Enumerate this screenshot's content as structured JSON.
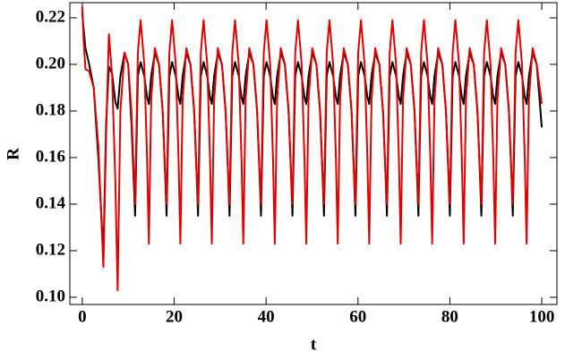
{
  "chart_data": {
    "type": "line",
    "xlabel": "t",
    "ylabel": "R",
    "xlim": [
      -2.7,
      103.3
    ],
    "ylim": [
      0.0969,
      0.2265
    ],
    "xticks": [
      0,
      20,
      40,
      60,
      80,
      100
    ],
    "yticks": [
      {
        "value": 0.1,
        "label": "0.10"
      },
      {
        "value": 0.12,
        "label": "0.12"
      },
      {
        "value": 0.14,
        "label": "0.14"
      },
      {
        "value": 0.16,
        "label": "0.16"
      },
      {
        "value": 0.18,
        "label": "0.18"
      },
      {
        "value": 0.2,
        "label": "0.20"
      },
      {
        "value": 0.22,
        "label": "0.22"
      }
    ],
    "x": [
      0,
      0.3,
      0.7,
      1.5,
      2.5,
      3.5,
      4.6,
      5.2,
      5.8,
      6.5,
      7.2,
      7.7,
      8.3,
      9.2,
      10.0,
      10.7,
      11.2,
      11.5,
      12.1,
      12.7,
      13.5,
      14.1,
      14.5,
      15,
      15.8,
      16.7,
      17.5,
      18,
      18.35,
      18.95,
      19.55,
      20.35,
      20.95,
      21.35,
      21.85,
      22.65,
      23.55,
      24.35,
      24.85,
      25.2,
      25.8,
      26.4,
      27.2,
      27.8,
      28.2,
      28.7,
      29.5,
      30.4,
      31.2,
      31.7,
      32.05,
      32.65,
      33.25,
      34.05,
      34.65,
      35.05,
      35.55,
      36.35,
      37.25,
      38.05,
      38.55,
      38.9,
      39.5,
      40.1,
      40.9,
      41.5,
      41.9,
      42.4,
      43.2,
      44.1,
      44.9,
      45.4,
      45.75,
      46.35,
      46.95,
      47.75,
      48.35,
      48.75,
      49.25,
      50.05,
      50.95,
      51.75,
      52.25,
      52.6,
      53.2,
      53.8,
      54.6,
      55.2,
      55.6,
      56.1,
      56.9,
      57.8,
      58.6,
      59.1,
      59.45,
      60.05,
      60.65,
      61.45,
      62.05,
      62.45,
      62.95,
      63.75,
      64.65,
      65.45,
      65.95,
      66.3,
      66.9,
      67.5,
      68.3,
      68.9,
      69.3,
      69.8,
      70.6,
      71.5,
      72.3,
      72.8,
      73.15,
      73.75,
      74.35,
      75.15,
      75.75,
      76.15,
      76.65,
      77.45,
      78.35,
      79.15,
      79.65,
      80,
      80.6,
      81.2,
      82,
      82.6,
      83,
      83.5,
      84.3,
      85.2,
      86,
      86.5,
      86.85,
      87.45,
      88.05,
      88.85,
      89.45,
      89.85,
      90.35,
      91.15,
      92.05,
      92.85,
      93.35,
      93.7,
      94.3,
      94.9,
      95.7,
      96.3,
      96.7,
      97.2,
      98,
      98.9,
      100
    ],
    "series": [
      {
        "color": "#000000",
        "values": [
          0.222,
          0.215,
          0.207,
          0.2,
          0.19,
          0.16,
          0.118,
          0.175,
          0.199,
          0.196,
          0.184,
          0.181,
          0.195,
          0.205,
          0.2,
          0.175,
          0.15,
          0.135,
          0.195,
          0.201,
          0.195,
          0.186,
          0.183,
          0.195,
          0.205,
          0.2,
          0.18,
          0.155,
          0.135,
          0.195,
          0.201,
          0.195,
          0.186,
          0.183,
          0.195,
          0.205,
          0.2,
          0.18,
          0.155,
          0.135,
          0.195,
          0.201,
          0.195,
          0.186,
          0.183,
          0.195,
          0.205,
          0.2,
          0.18,
          0.155,
          0.135,
          0.195,
          0.201,
          0.195,
          0.186,
          0.183,
          0.195,
          0.205,
          0.2,
          0.18,
          0.155,
          0.135,
          0.195,
          0.201,
          0.195,
          0.186,
          0.183,
          0.195,
          0.205,
          0.2,
          0.18,
          0.155,
          0.135,
          0.195,
          0.201,
          0.195,
          0.186,
          0.183,
          0.195,
          0.205,
          0.2,
          0.18,
          0.155,
          0.135,
          0.195,
          0.201,
          0.195,
          0.186,
          0.183,
          0.195,
          0.205,
          0.2,
          0.18,
          0.155,
          0.135,
          0.195,
          0.201,
          0.195,
          0.186,
          0.183,
          0.195,
          0.205,
          0.2,
          0.18,
          0.155,
          0.135,
          0.195,
          0.201,
          0.195,
          0.186,
          0.183,
          0.195,
          0.205,
          0.2,
          0.18,
          0.155,
          0.135,
          0.195,
          0.201,
          0.195,
          0.186,
          0.183,
          0.195,
          0.205,
          0.2,
          0.18,
          0.155,
          0.135,
          0.195,
          0.201,
          0.195,
          0.186,
          0.183,
          0.195,
          0.205,
          0.2,
          0.18,
          0.155,
          0.135,
          0.195,
          0.201,
          0.195,
          0.186,
          0.183,
          0.195,
          0.205,
          0.2,
          0.18,
          0.155,
          0.135,
          0.195,
          0.201,
          0.195,
          0.186,
          0.183,
          0.195,
          0.205,
          0.2,
          0.173
        ]
      },
      {
        "color": "#e00000",
        "values": [
          0.225,
          0.21,
          0.198,
          0.197,
          0.19,
          0.165,
          0.113,
          0.17,
          0.213,
          0.195,
          0.15,
          0.103,
          0.18,
          0.205,
          0.2,
          0.18,
          0.155,
          0.14,
          0.205,
          0.219,
          0.2,
          0.16,
          0.123,
          0.185,
          0.207,
          0.2,
          0.18,
          0.155,
          0.14,
          0.205,
          0.219,
          0.2,
          0.16,
          0.123,
          0.185,
          0.207,
          0.2,
          0.18,
          0.155,
          0.14,
          0.205,
          0.219,
          0.2,
          0.16,
          0.123,
          0.185,
          0.207,
          0.2,
          0.18,
          0.155,
          0.14,
          0.205,
          0.219,
          0.2,
          0.16,
          0.123,
          0.185,
          0.207,
          0.2,
          0.18,
          0.155,
          0.14,
          0.205,
          0.219,
          0.2,
          0.16,
          0.123,
          0.185,
          0.207,
          0.2,
          0.18,
          0.155,
          0.14,
          0.205,
          0.219,
          0.2,
          0.16,
          0.123,
          0.185,
          0.207,
          0.2,
          0.18,
          0.155,
          0.14,
          0.205,
          0.219,
          0.2,
          0.16,
          0.123,
          0.185,
          0.207,
          0.2,
          0.18,
          0.155,
          0.14,
          0.205,
          0.219,
          0.2,
          0.16,
          0.123,
          0.185,
          0.207,
          0.2,
          0.18,
          0.155,
          0.14,
          0.205,
          0.219,
          0.2,
          0.16,
          0.123,
          0.185,
          0.207,
          0.2,
          0.18,
          0.155,
          0.14,
          0.205,
          0.219,
          0.2,
          0.16,
          0.123,
          0.185,
          0.207,
          0.2,
          0.18,
          0.155,
          0.14,
          0.205,
          0.219,
          0.2,
          0.16,
          0.123,
          0.185,
          0.207,
          0.2,
          0.18,
          0.155,
          0.14,
          0.205,
          0.219,
          0.2,
          0.16,
          0.123,
          0.185,
          0.207,
          0.2,
          0.18,
          0.155,
          0.14,
          0.205,
          0.219,
          0.2,
          0.16,
          0.123,
          0.185,
          0.207,
          0.2,
          0.183
        ]
      }
    ]
  }
}
